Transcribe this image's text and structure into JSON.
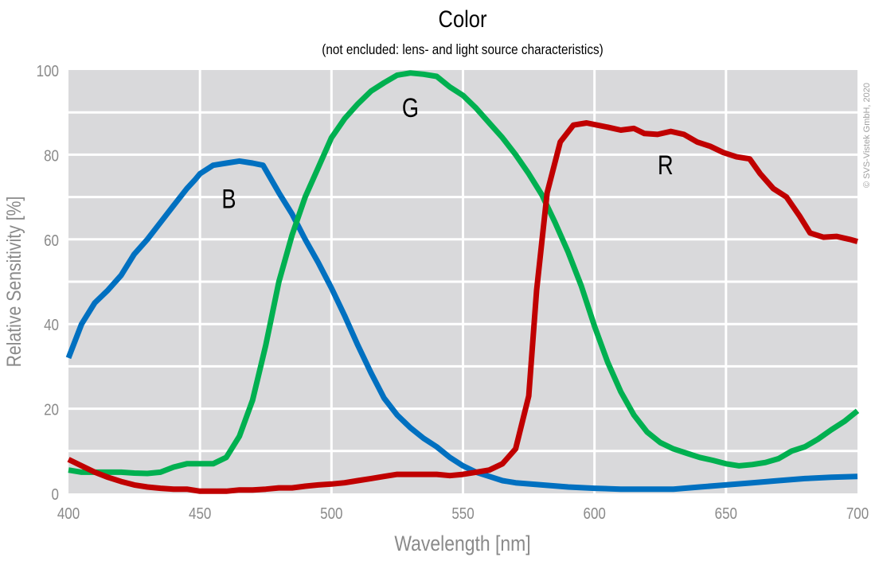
{
  "chart_data": {
    "type": "line",
    "title": "Color",
    "subtitle": "(not encluded: lens- and light source characteristics)",
    "xlabel": "Wavelength [nm]",
    "ylabel": "Relative Sensitivity [%]",
    "xlim": [
      400,
      700
    ],
    "ylim": [
      0,
      100
    ],
    "xticks": [
      400,
      450,
      500,
      550,
      600,
      650,
      700
    ],
    "yticks": [
      0,
      20,
      40,
      60,
      80,
      100
    ],
    "grid": true,
    "background_color": "#d9d9db",
    "copyright": "© SVS-Vistek GmbH, 2020",
    "series": [
      {
        "name": "B",
        "color": "#0070c0",
        "label_at": [
          461,
          70
        ],
        "x": [
          400,
          405,
          410,
          415,
          420,
          425,
          430,
          435,
          440,
          445,
          448,
          450,
          455,
          460,
          465,
          470,
          474,
          480,
          485,
          490,
          495,
          500,
          505,
          510,
          515,
          520,
          525,
          530,
          535,
          540,
          545,
          550,
          555,
          560,
          565,
          570,
          580,
          590,
          600,
          610,
          620,
          630,
          640,
          650,
          660,
          670,
          680,
          690,
          700
        ],
        "y": [
          32,
          40,
          45,
          48,
          51.5,
          56.5,
          60,
          64,
          68,
          72,
          74,
          75.5,
          77.5,
          78,
          78.5,
          78,
          77.5,
          71,
          66,
          60,
          54.5,
          48.5,
          42,
          35,
          28.5,
          22.5,
          18.5,
          15.5,
          13,
          11,
          8.5,
          6.5,
          5,
          4,
          3,
          2.5,
          2,
          1.5,
          1.2,
          1,
          1,
          1,
          1.5,
          2,
          2.5,
          3,
          3.5,
          3.8,
          4
        ]
      },
      {
        "name": "G",
        "color": "#00b050",
        "label_at": [
          530,
          91.5
        ],
        "x": [
          400,
          405,
          410,
          415,
          420,
          425,
          430,
          435,
          440,
          445,
          450,
          455,
          460,
          465,
          470,
          475,
          480,
          485,
          490,
          495,
          500,
          505,
          510,
          515,
          520,
          525,
          530,
          535,
          540,
          545,
          550,
          555,
          560,
          565,
          570,
          575,
          580,
          585,
          590,
          595,
          600,
          605,
          610,
          615,
          620,
          625,
          630,
          635,
          640,
          645,
          650,
          655,
          660,
          665,
          670,
          675,
          680,
          685,
          690,
          695,
          700
        ],
        "y": [
          5.5,
          5,
          5,
          5,
          5,
          4.8,
          4.7,
          5,
          6.2,
          7,
          7,
          7,
          8.5,
          13.5,
          22,
          35,
          50,
          61,
          70,
          77,
          84,
          88.5,
          92,
          95,
          97,
          98.8,
          99.3,
          99,
          98.5,
          96,
          94,
          91,
          87.5,
          84,
          80,
          75.5,
          70.5,
          64,
          57,
          49,
          39.5,
          31,
          24,
          18.5,
          14.5,
          12,
          10.5,
          9.5,
          8.5,
          7.8,
          7,
          6.5,
          6.8,
          7.3,
          8.2,
          10,
          11,
          12.8,
          15,
          17,
          19.5
        ]
      },
      {
        "name": "R",
        "color": "#c00000",
        "label_at": [
          627,
          78
        ],
        "x": [
          400,
          405,
          410,
          415,
          420,
          425,
          430,
          435,
          440,
          445,
          450,
          455,
          460,
          465,
          470,
          475,
          480,
          485,
          490,
          495,
          500,
          505,
          510,
          515,
          520,
          525,
          530,
          535,
          540,
          545,
          550,
          555,
          560,
          565,
          570,
          575,
          578,
          582,
          587,
          592,
          597,
          601,
          605,
          610,
          615,
          619,
          624,
          629,
          634,
          639,
          644,
          649,
          654,
          659,
          663,
          668,
          673,
          678,
          682,
          687,
          692,
          697,
          700
        ],
        "y": [
          8,
          6.5,
          5,
          3.8,
          2.8,
          2,
          1.5,
          1.2,
          1,
          1,
          0.5,
          0.5,
          0.5,
          0.8,
          0.8,
          1,
          1.3,
          1.3,
          1.7,
          2,
          2.2,
          2.5,
          3,
          3.5,
          4,
          4.5,
          4.5,
          4.5,
          4.5,
          4.2,
          4.5,
          5,
          5.5,
          7,
          10.5,
          23,
          48,
          71,
          83,
          87,
          87.5,
          87,
          86.5,
          85.8,
          86.2,
          85,
          84.8,
          85.5,
          84.8,
          83,
          82,
          80.5,
          79.5,
          79,
          75.5,
          72,
          70,
          65.5,
          61.5,
          60.5,
          60.7,
          60,
          59.5
        ]
      }
    ]
  }
}
